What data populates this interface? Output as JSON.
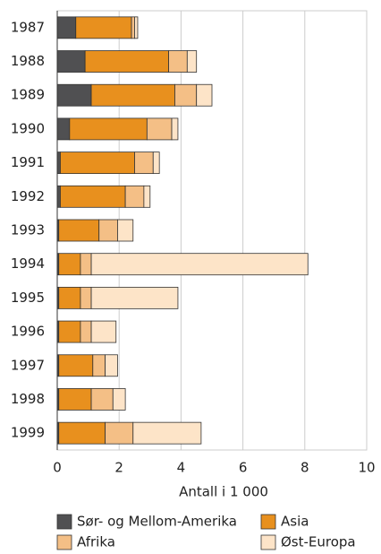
{
  "chart_data": {
    "type": "stacked_barh",
    "xlabel": "Antall i 1 000",
    "categories": [
      "1987",
      "1988",
      "1989",
      "1990",
      "1991",
      "1992",
      "1993",
      "1994",
      "1995",
      "1996",
      "1997",
      "1998",
      "1999"
    ],
    "series": [
      {
        "name": "Sør- og Mellom-Amerika",
        "color": "#505052",
        "values": [
          0.6,
          0.9,
          1.1,
          0.4,
          0.1,
          0.1,
          0.05,
          0.05,
          0.05,
          0.05,
          0.05,
          0.05,
          0.05
        ]
      },
      {
        "name": "Asia",
        "color": "#e8901e",
        "values": [
          1.8,
          2.7,
          2.7,
          2.5,
          2.4,
          2.1,
          1.3,
          0.7,
          0.7,
          0.7,
          1.1,
          1.05,
          1.5
        ]
      },
      {
        "name": "Afrika",
        "color": "#f4bf86",
        "values": [
          0.1,
          0.6,
          0.7,
          0.8,
          0.6,
          0.6,
          0.6,
          0.35,
          0.35,
          0.35,
          0.4,
          0.7,
          0.9
        ]
      },
      {
        "name": "Øst-Europa",
        "color": "#fde4c8",
        "values": [
          0.1,
          0.3,
          0.5,
          0.2,
          0.2,
          0.2,
          0.5,
          7.0,
          2.8,
          0.8,
          0.4,
          0.4,
          2.2
        ]
      }
    ],
    "xlim": [
      0,
      10
    ],
    "xticks": [
      0,
      2,
      4,
      6,
      8,
      10
    ],
    "grid": true
  }
}
